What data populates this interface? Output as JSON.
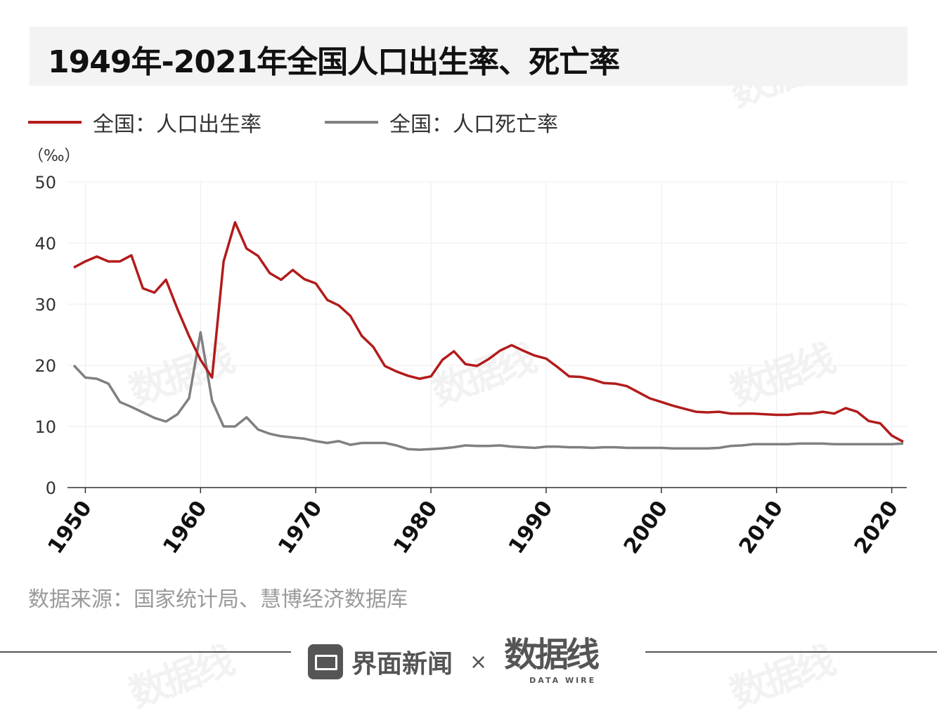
{
  "title": "1949年-2021年全国人口出生率、死亡率",
  "unit": "（‰）",
  "source": "数据来源：国家统计局、慧博经济数据库",
  "footer": {
    "brand1": "界面新闻",
    "times": "×",
    "brand2": "数据线",
    "brand2_sub": "DATA WIRE"
  },
  "watermark": "数据线 DATA WIRE",
  "chart_data": {
    "type": "line",
    "title": "1949年-2021年全国人口出生率、死亡率",
    "ylabel": "（‰）",
    "ylim": [
      0,
      50
    ],
    "yticks": [
      0,
      10,
      20,
      30,
      40,
      50
    ],
    "xticks": [
      1950,
      1960,
      1970,
      1980,
      1990,
      2000,
      2010,
      2020
    ],
    "xlim": [
      1949,
      2021
    ],
    "grid": true,
    "legend": "top-left",
    "x": [
      1949,
      1950,
      1951,
      1952,
      1953,
      1954,
      1955,
      1956,
      1957,
      1958,
      1959,
      1960,
      1961,
      1962,
      1963,
      1964,
      1965,
      1966,
      1967,
      1968,
      1969,
      1970,
      1971,
      1972,
      1973,
      1974,
      1975,
      1976,
      1977,
      1978,
      1979,
      1980,
      1981,
      1982,
      1983,
      1984,
      1985,
      1986,
      1987,
      1988,
      1989,
      1990,
      1991,
      1992,
      1993,
      1994,
      1995,
      1996,
      1997,
      1998,
      1999,
      2000,
      2001,
      2002,
      2003,
      2004,
      2005,
      2006,
      2007,
      2008,
      2009,
      2010,
      2011,
      2012,
      2013,
      2014,
      2015,
      2016,
      2017,
      2018,
      2019,
      2020,
      2021
    ],
    "series": [
      {
        "name": "全国：人口出生率",
        "color": "#b31b1b",
        "values": [
          36.0,
          37.0,
          37.8,
          37.0,
          37.0,
          38.0,
          32.6,
          31.9,
          34.0,
          29.2,
          24.8,
          20.9,
          18.0,
          37.0,
          43.4,
          39.1,
          37.9,
          35.1,
          34.0,
          35.6,
          34.1,
          33.4,
          30.7,
          29.8,
          28.1,
          24.8,
          23.0,
          19.9,
          19.0,
          18.3,
          17.8,
          18.2,
          20.9,
          22.3,
          20.2,
          19.9,
          21.0,
          22.4,
          23.3,
          22.4,
          21.6,
          21.1,
          19.7,
          18.2,
          18.1,
          17.7,
          17.1,
          17.0,
          16.6,
          15.6,
          14.6,
          14.0,
          13.4,
          12.9,
          12.4,
          12.3,
          12.4,
          12.1,
          12.1,
          12.1,
          12.0,
          11.9,
          11.9,
          12.1,
          12.1,
          12.4,
          12.1,
          13.0,
          12.4,
          10.9,
          10.5,
          8.5,
          7.5
        ]
      },
      {
        "name": "全国：人口死亡率",
        "color": "#808080",
        "values": [
          20.0,
          18.0,
          17.8,
          17.0,
          14.0,
          13.2,
          12.3,
          11.4,
          10.8,
          12.0,
          14.6,
          25.4,
          14.2,
          10.0,
          10.0,
          11.5,
          9.5,
          8.8,
          8.4,
          8.2,
          8.0,
          7.6,
          7.3,
          7.6,
          7.0,
          7.3,
          7.3,
          7.3,
          6.9,
          6.3,
          6.2,
          6.3,
          6.4,
          6.6,
          6.9,
          6.8,
          6.8,
          6.9,
          6.7,
          6.6,
          6.5,
          6.7,
          6.7,
          6.6,
          6.6,
          6.5,
          6.6,
          6.6,
          6.5,
          6.5,
          6.5,
          6.5,
          6.4,
          6.4,
          6.4,
          6.4,
          6.5,
          6.8,
          6.9,
          7.1,
          7.1,
          7.1,
          7.1,
          7.2,
          7.2,
          7.2,
          7.1,
          7.1,
          7.1,
          7.1,
          7.1,
          7.1,
          7.2
        ]
      }
    ]
  }
}
